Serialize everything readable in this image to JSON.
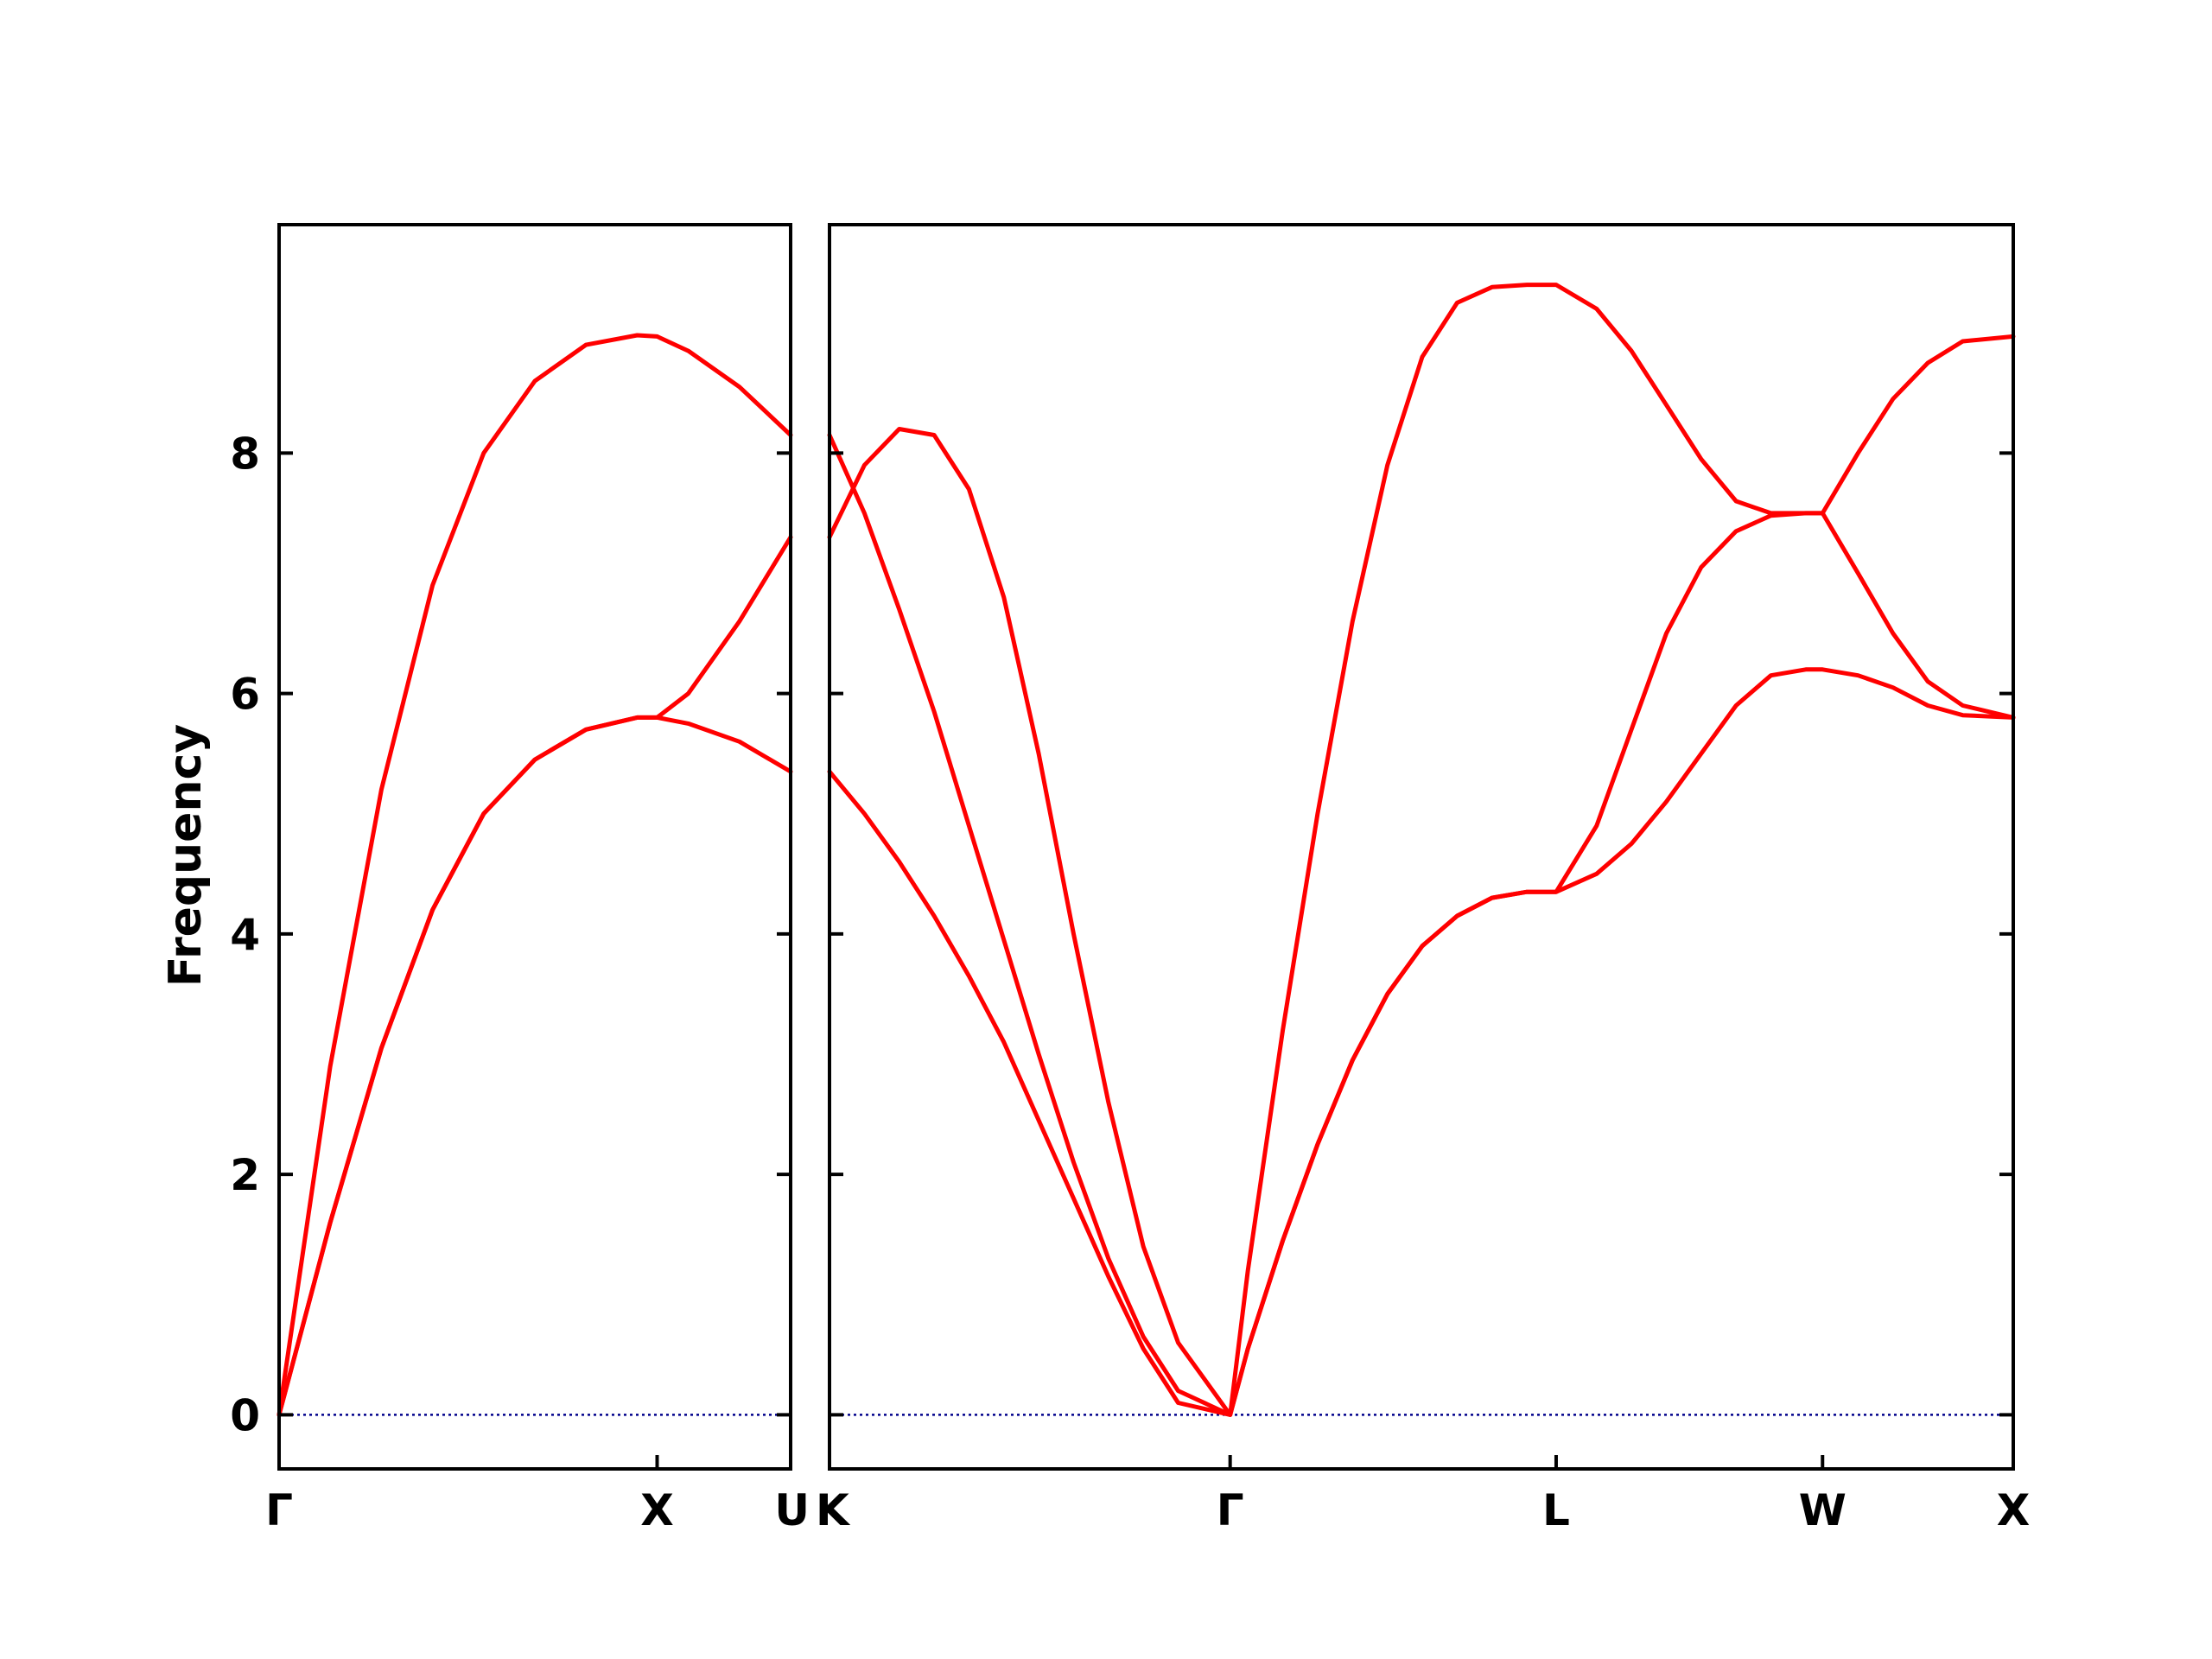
{
  "chart_data": {
    "type": "line",
    "ylabel": "Frequency",
    "ylim": [
      -0.45,
      9.9
    ],
    "y_ticks": [
      0,
      2,
      4,
      6,
      8
    ],
    "grid": false,
    "colors": {
      "bands": "#ff0000",
      "zero_line": "#00008b"
    },
    "panels": [
      {
        "xlim": [
          0,
          1.0
        ],
        "k_points": [
          {
            "label": "Γ",
            "x": 0
          },
          {
            "label": "X",
            "x": 0.739
          },
          {
            "label": "U",
            "x": 1.0
          }
        ],
        "series": [
          {
            "x": [
              0,
              0.1,
              0.2,
              0.3,
              0.4,
              0.5,
              0.6,
              0.7,
              0.739,
              0.8,
              0.9,
              1.0
            ],
            "y": [
              0,
              1.6,
              3.05,
              4.2,
              5.0,
              5.45,
              5.7,
              5.8,
              5.8,
              5.75,
              5.6,
              5.35
            ]
          },
          {
            "x": [
              0,
              0.1,
              0.2,
              0.3,
              0.4,
              0.5,
              0.6,
              0.7,
              0.739,
              0.8,
              0.9,
              1.0
            ],
            "y": [
              0,
              2.9,
              5.2,
              6.9,
              8.0,
              8.6,
              8.9,
              8.98,
              8.97,
              8.85,
              8.55,
              8.15
            ]
          },
          {
            "x": [
              0,
              0.1,
              0.2,
              0.3,
              0.4,
              0.5,
              0.6,
              0.7,
              0.739,
              0.8,
              0.9,
              1.0
            ],
            "y": [
              0,
              1.6,
              3.05,
              4.2,
              5.0,
              5.45,
              5.7,
              5.8,
              5.8,
              6.0,
              6.6,
              7.3
            ]
          }
        ]
      },
      {
        "xlim": [
          0,
          3.395
        ],
        "k_points": [
          {
            "label": "K",
            "x": 0
          },
          {
            "label": "Γ",
            "x": 1.149
          },
          {
            "label": "L",
            "x": 2.084
          },
          {
            "label": "W",
            "x": 2.848
          },
          {
            "label": "X",
            "x": 3.395
          }
        ],
        "series": [
          {
            "x": [
              0,
              0.1,
              0.2,
              0.3,
              0.4,
              0.5,
              0.6,
              0.7,
              0.8,
              0.9,
              1.0,
              1.149,
              1.2,
              1.3,
              1.4,
              1.5,
              1.6,
              1.7,
              1.8,
              1.9,
              2.0,
              2.084,
              2.2,
              2.3,
              2.4,
              2.5,
              2.6,
              2.7,
              2.8,
              2.848,
              2.95,
              3.05,
              3.15,
              3.25,
              3.395
            ],
            "y": [
              5.35,
              5.0,
              4.6,
              4.15,
              3.65,
              3.1,
              2.45,
              1.8,
              1.15,
              0.55,
              0.1,
              0,
              0.55,
              1.45,
              2.25,
              2.95,
              3.5,
              3.9,
              4.15,
              4.3,
              4.35,
              4.35,
              4.5,
              4.75,
              5.1,
              5.5,
              5.9,
              6.15,
              6.2,
              6.2,
              6.15,
              6.05,
              5.9,
              5.82,
              5.8
            ]
          },
          {
            "x": [
              0,
              0.1,
              0.2,
              0.3,
              0.4,
              0.5,
              0.6,
              0.7,
              0.8,
              0.9,
              1.0,
              1.149,
              1.2,
              1.3,
              1.4,
              1.5,
              1.6,
              1.7,
              1.8,
              1.9,
              2.0,
              2.084,
              2.2,
              2.3,
              2.4,
              2.5,
              2.6,
              2.7,
              2.8,
              2.848,
              2.95,
              3.05,
              3.15,
              3.25,
              3.395
            ],
            "y": [
              8.15,
              7.5,
              6.7,
              5.85,
              4.9,
              3.95,
              3.0,
              2.1,
              1.3,
              0.65,
              0.2,
              0,
              0.55,
              1.45,
              2.25,
              2.95,
              3.5,
              3.9,
              4.15,
              4.3,
              4.35,
              4.35,
              4.9,
              5.7,
              6.5,
              7.05,
              7.35,
              7.48,
              7.5,
              7.5,
              7.0,
              6.5,
              6.1,
              5.9,
              5.8
            ]
          },
          {
            "x": [
              0,
              0.1,
              0.2,
              0.3,
              0.4,
              0.5,
              0.6,
              0.7,
              0.8,
              0.9,
              1.0,
              1.149,
              1.2,
              1.3,
              1.4,
              1.5,
              1.6,
              1.7,
              1.8,
              1.9,
              2.0,
              2.084,
              2.2,
              2.3,
              2.4,
              2.5,
              2.6,
              2.7,
              2.8,
              2.848,
              2.95,
              3.05,
              3.15,
              3.25,
              3.395
            ],
            "y": [
              7.3,
              7.9,
              8.2,
              8.15,
              7.7,
              6.8,
              5.5,
              4.0,
              2.6,
              1.4,
              0.6,
              0,
              1.2,
              3.2,
              5.0,
              6.6,
              7.9,
              8.8,
              9.25,
              9.38,
              9.4,
              9.4,
              9.2,
              8.85,
              8.4,
              7.95,
              7.6,
              7.5,
              7.5,
              7.5,
              8.0,
              8.45,
              8.75,
              8.93,
              8.97
            ]
          }
        ]
      }
    ]
  }
}
